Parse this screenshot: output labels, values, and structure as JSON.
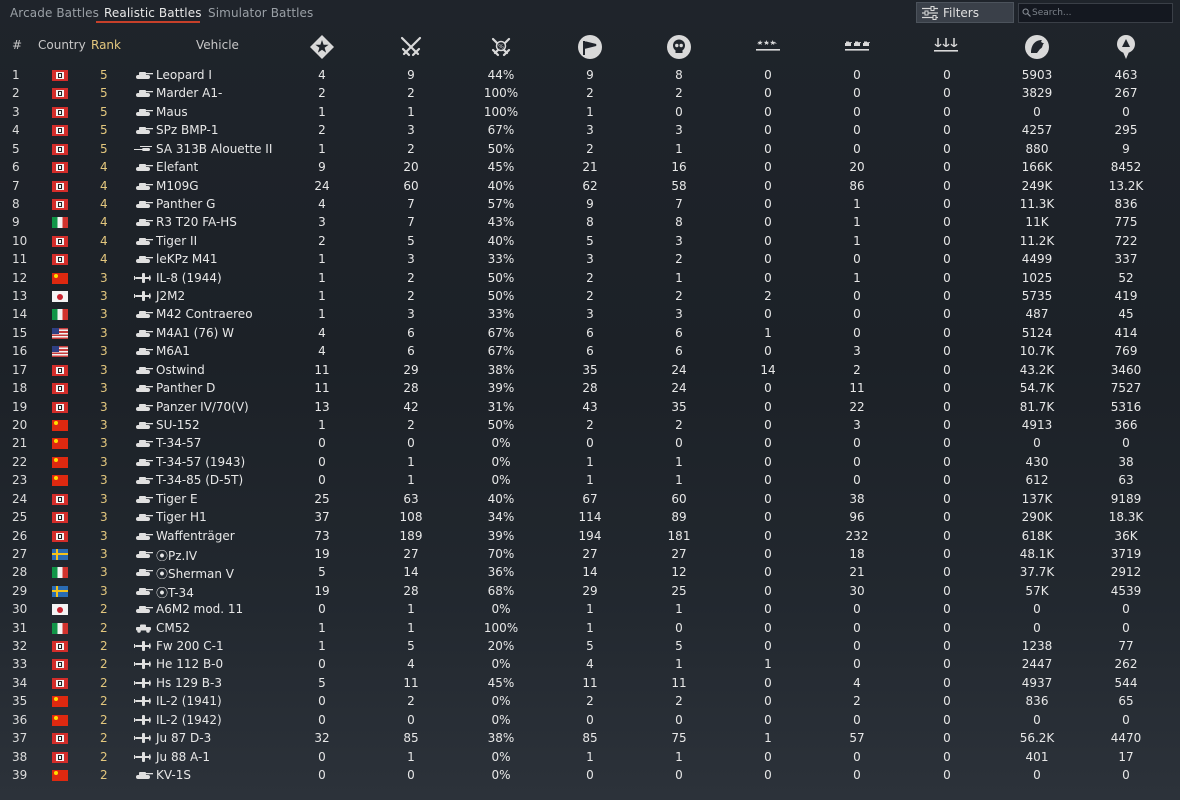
{
  "tabs": [
    {
      "label": "Arcade Battles",
      "active": false
    },
    {
      "label": "Realistic Battles",
      "active": true
    },
    {
      "label": "Simulator Battles",
      "active": false
    }
  ],
  "filters_label": "Filters",
  "search_placeholder": "Search...",
  "headers": {
    "num": "#",
    "country": "Country",
    "rank": "Rank",
    "vehicle": "Vehicle",
    "stat_icons": [
      "missions-icon",
      "victories-icon",
      "win-rate-icon",
      "respawns-icon",
      "deaths-icon",
      "air-kills-icon",
      "ground-kills-icon",
      "naval-kills-icon",
      "research-points-icon",
      "silver-lions-icon"
    ]
  },
  "colors": {
    "accent": "#c7402a",
    "rank": "#e3c77e"
  },
  "rows": [
    {
      "num": "1",
      "country": "de",
      "rank": "5",
      "type": "tank",
      "vehicle": "Leopard I",
      "stats": [
        "4",
        "9",
        "44%",
        "9",
        "8",
        "0",
        "0",
        "0",
        "5903",
        "463"
      ]
    },
    {
      "num": "2",
      "country": "de",
      "rank": "5",
      "type": "tank",
      "vehicle": "Marder A1-",
      "stats": [
        "2",
        "2",
        "100%",
        "2",
        "2",
        "0",
        "0",
        "0",
        "3829",
        "267"
      ]
    },
    {
      "num": "3",
      "country": "de",
      "rank": "5",
      "type": "tank",
      "vehicle": "Maus",
      "stats": [
        "1",
        "1",
        "100%",
        "1",
        "0",
        "0",
        "0",
        "0",
        "0",
        "0"
      ]
    },
    {
      "num": "4",
      "country": "de",
      "rank": "5",
      "type": "tank",
      "vehicle": "SPz BMP-1",
      "stats": [
        "2",
        "3",
        "67%",
        "3",
        "3",
        "0",
        "0",
        "0",
        "4257",
        "295"
      ]
    },
    {
      "num": "5",
      "country": "de",
      "rank": "5",
      "type": "heli",
      "vehicle": "SA 313B Alouette II",
      "stats": [
        "1",
        "2",
        "50%",
        "2",
        "1",
        "0",
        "0",
        "0",
        "880",
        "9"
      ]
    },
    {
      "num": "6",
      "country": "de",
      "rank": "4",
      "type": "tank",
      "vehicle": "Elefant",
      "stats": [
        "9",
        "20",
        "45%",
        "21",
        "16",
        "0",
        "20",
        "0",
        "166K",
        "8452"
      ]
    },
    {
      "num": "7",
      "country": "de",
      "rank": "4",
      "type": "tank",
      "vehicle": "M109G",
      "stats": [
        "24",
        "60",
        "40%",
        "62",
        "58",
        "0",
        "86",
        "0",
        "249K",
        "13.2K"
      ]
    },
    {
      "num": "8",
      "country": "de",
      "rank": "4",
      "type": "tank",
      "vehicle": "Panther G",
      "stats": [
        "4",
        "7",
        "57%",
        "9",
        "7",
        "0",
        "1",
        "0",
        "11.3K",
        "836"
      ]
    },
    {
      "num": "9",
      "country": "it",
      "rank": "4",
      "type": "tank",
      "vehicle": "R3 T20 FA-HS",
      "stats": [
        "3",
        "7",
        "43%",
        "8",
        "8",
        "0",
        "1",
        "0",
        "11K",
        "775"
      ]
    },
    {
      "num": "10",
      "country": "de",
      "rank": "4",
      "type": "tank",
      "vehicle": "Tiger II",
      "stats": [
        "2",
        "5",
        "40%",
        "5",
        "3",
        "0",
        "1",
        "0",
        "11.2K",
        "722"
      ]
    },
    {
      "num": "11",
      "country": "de",
      "rank": "4",
      "type": "tank",
      "vehicle": "leKPz M41",
      "stats": [
        "1",
        "3",
        "33%",
        "3",
        "2",
        "0",
        "0",
        "0",
        "4499",
        "337"
      ]
    },
    {
      "num": "12",
      "country": "cn",
      "rank": "3",
      "type": "plane",
      "vehicle": "IL-8 (1944)",
      "stats": [
        "1",
        "2",
        "50%",
        "2",
        "1",
        "0",
        "1",
        "0",
        "1025",
        "52"
      ]
    },
    {
      "num": "13",
      "country": "jp",
      "rank": "3",
      "type": "plane",
      "vehicle": "J2M2",
      "stats": [
        "1",
        "2",
        "50%",
        "2",
        "2",
        "2",
        "0",
        "0",
        "5735",
        "419"
      ]
    },
    {
      "num": "14",
      "country": "it",
      "rank": "3",
      "type": "tank",
      "vehicle": "M42 Contraereo",
      "stats": [
        "1",
        "3",
        "33%",
        "3",
        "3",
        "0",
        "0",
        "0",
        "487",
        "45"
      ]
    },
    {
      "num": "15",
      "country": "us",
      "rank": "3",
      "type": "tank",
      "vehicle": "M4A1 (76) W",
      "stats": [
        "4",
        "6",
        "67%",
        "6",
        "6",
        "1",
        "0",
        "0",
        "5124",
        "414"
      ]
    },
    {
      "num": "16",
      "country": "us",
      "rank": "3",
      "type": "tank",
      "vehicle": "M6A1",
      "stats": [
        "4",
        "6",
        "67%",
        "6",
        "6",
        "0",
        "3",
        "0",
        "10.7K",
        "769"
      ]
    },
    {
      "num": "17",
      "country": "de",
      "rank": "3",
      "type": "tank",
      "vehicle": "Ostwind",
      "stats": [
        "11",
        "29",
        "38%",
        "35",
        "24",
        "14",
        "2",
        "0",
        "43.2K",
        "3460"
      ]
    },
    {
      "num": "18",
      "country": "de",
      "rank": "3",
      "type": "tank",
      "vehicle": "Panther D",
      "stats": [
        "11",
        "28",
        "39%",
        "28",
        "24",
        "0",
        "11",
        "0",
        "54.7K",
        "7527"
      ]
    },
    {
      "num": "19",
      "country": "de",
      "rank": "3",
      "type": "tank",
      "vehicle": "Panzer IV/70(V)",
      "stats": [
        "13",
        "42",
        "31%",
        "43",
        "35",
        "0",
        "22",
        "0",
        "81.7K",
        "5316"
      ]
    },
    {
      "num": "20",
      "country": "cn",
      "rank": "3",
      "type": "tank",
      "vehicle": "SU-152",
      "stats": [
        "1",
        "2",
        "50%",
        "2",
        "2",
        "0",
        "3",
        "0",
        "4913",
        "366"
      ]
    },
    {
      "num": "21",
      "country": "cn",
      "rank": "3",
      "type": "tank",
      "vehicle": "T-34-57",
      "stats": [
        "0",
        "0",
        "0%",
        "0",
        "0",
        "0",
        "0",
        "0",
        "0",
        "0"
      ]
    },
    {
      "num": "22",
      "country": "cn",
      "rank": "3",
      "type": "tank",
      "vehicle": "T-34-57 (1943)",
      "stats": [
        "0",
        "1",
        "0%",
        "1",
        "1",
        "0",
        "0",
        "0",
        "430",
        "38"
      ]
    },
    {
      "num": "23",
      "country": "cn",
      "rank": "3",
      "type": "tank",
      "vehicle": "T-34-85 (D-5T)",
      "stats": [
        "0",
        "1",
        "0%",
        "1",
        "1",
        "0",
        "0",
        "0",
        "612",
        "63"
      ]
    },
    {
      "num": "24",
      "country": "de",
      "rank": "3",
      "type": "tank",
      "vehicle": "Tiger E",
      "stats": [
        "25",
        "63",
        "40%",
        "67",
        "60",
        "0",
        "38",
        "0",
        "137K",
        "9189"
      ]
    },
    {
      "num": "25",
      "country": "de",
      "rank": "3",
      "type": "tank",
      "vehicle": "Tiger H1",
      "stats": [
        "37",
        "108",
        "34%",
        "114",
        "89",
        "0",
        "96",
        "0",
        "290K",
        "18.3K"
      ]
    },
    {
      "num": "26",
      "country": "de",
      "rank": "3",
      "type": "tank",
      "vehicle": "Waffenträger",
      "stats": [
        "73",
        "189",
        "39%",
        "194",
        "181",
        "0",
        "232",
        "0",
        "618K",
        "36K"
      ]
    },
    {
      "num": "27",
      "country": "se",
      "rank": "3",
      "type": "tank",
      "vehicle": "⦿Pz.IV",
      "stats": [
        "19",
        "27",
        "70%",
        "27",
        "27",
        "0",
        "18",
        "0",
        "48.1K",
        "3719"
      ]
    },
    {
      "num": "28",
      "country": "it",
      "rank": "3",
      "type": "tank",
      "vehicle": "⦿Sherman V",
      "stats": [
        "5",
        "14",
        "36%",
        "14",
        "12",
        "0",
        "21",
        "0",
        "37.7K",
        "2912"
      ]
    },
    {
      "num": "29",
      "country": "se",
      "rank": "3",
      "type": "tank",
      "vehicle": "⦿T-34",
      "stats": [
        "19",
        "28",
        "68%",
        "29",
        "25",
        "0",
        "30",
        "0",
        "57K",
        "4539"
      ]
    },
    {
      "num": "30",
      "country": "jp",
      "rank": "2",
      "type": "tank",
      "vehicle": "A6M2 mod. 11",
      "stats": [
        "0",
        "1",
        "0%",
        "1",
        "1",
        "0",
        "0",
        "0",
        "0",
        "0"
      ]
    },
    {
      "num": "31",
      "country": "it",
      "rank": "2",
      "type": "car",
      "vehicle": "CM52",
      "stats": [
        "1",
        "1",
        "100%",
        "1",
        "0",
        "0",
        "0",
        "0",
        "0",
        "0"
      ]
    },
    {
      "num": "32",
      "country": "de",
      "rank": "2",
      "type": "plane",
      "vehicle": "Fw 200 C-1",
      "stats": [
        "1",
        "5",
        "20%",
        "5",
        "5",
        "0",
        "0",
        "0",
        "1238",
        "77"
      ]
    },
    {
      "num": "33",
      "country": "de",
      "rank": "2",
      "type": "plane",
      "vehicle": "He 112 B-0",
      "stats": [
        "0",
        "4",
        "0%",
        "4",
        "1",
        "1",
        "0",
        "0",
        "2447",
        "262"
      ]
    },
    {
      "num": "34",
      "country": "de",
      "rank": "2",
      "type": "plane",
      "vehicle": "Hs 129 B-3",
      "stats": [
        "5",
        "11",
        "45%",
        "11",
        "11",
        "0",
        "4",
        "0",
        "4937",
        "544"
      ]
    },
    {
      "num": "35",
      "country": "cn",
      "rank": "2",
      "type": "plane",
      "vehicle": "IL-2 (1941)",
      "stats": [
        "0",
        "2",
        "0%",
        "2",
        "2",
        "0",
        "2",
        "0",
        "836",
        "65"
      ]
    },
    {
      "num": "36",
      "country": "cn",
      "rank": "2",
      "type": "plane",
      "vehicle": "IL-2 (1942)",
      "stats": [
        "0",
        "0",
        "0%",
        "0",
        "0",
        "0",
        "0",
        "0",
        "0",
        "0"
      ]
    },
    {
      "num": "37",
      "country": "de",
      "rank": "2",
      "type": "plane",
      "vehicle": "Ju 87 D-3",
      "stats": [
        "32",
        "85",
        "38%",
        "85",
        "75",
        "1",
        "57",
        "0",
        "56.2K",
        "4470"
      ]
    },
    {
      "num": "38",
      "country": "de",
      "rank": "2",
      "type": "plane",
      "vehicle": "Ju 88 A-1",
      "stats": [
        "0",
        "1",
        "0%",
        "1",
        "1",
        "0",
        "0",
        "0",
        "401",
        "17"
      ]
    },
    {
      "num": "39",
      "country": "cn",
      "rank": "2",
      "type": "tank",
      "vehicle": "KV-1S",
      "stats": [
        "0",
        "0",
        "0%",
        "0",
        "0",
        "0",
        "0",
        "0",
        "0",
        "0"
      ]
    }
  ]
}
